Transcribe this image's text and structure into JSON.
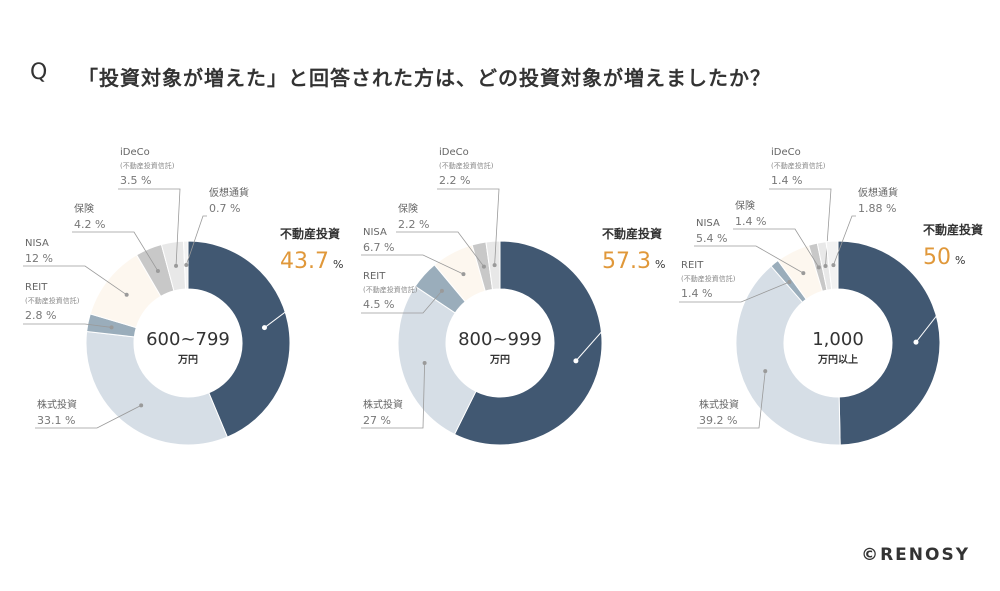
{
  "title": {
    "q_mark": "Q",
    "question": "「投資対象が増えた」と回答された方は、どの投資対象が増えましたか？"
  },
  "copyright": "©RENOSY",
  "colors": {
    "real_estate": "#415872",
    "stock": "#d6dee6",
    "reit": "#9aadbb",
    "nisa": "#fdf7ef",
    "insurance": "#c8c8c8",
    "ideco": "#e8e8e8",
    "crypto": "#f2f2f2",
    "accent": "#e0983a"
  },
  "chart_data": [
    {
      "type": "pie",
      "center_label": [
        "600~799",
        "万円"
      ],
      "segments": [
        {
          "label": "不動産投資",
          "sublabel": "",
          "value": 43.7,
          "unit": "%",
          "color_key": "real_estate"
        },
        {
          "label": "株式投資",
          "sublabel": "",
          "value": 33.1,
          "unit": "%",
          "color_key": "stock"
        },
        {
          "label": "REIT",
          "sublabel": "(不動産投資信託)",
          "value": 2.8,
          "unit": "%",
          "color_key": "reit"
        },
        {
          "label": "NISA",
          "sublabel": "",
          "value": 12,
          "unit": "%",
          "color_key": "nisa"
        },
        {
          "label": "保険",
          "sublabel": "",
          "value": 4.2,
          "unit": "%",
          "color_key": "insurance"
        },
        {
          "label": "iDeCo",
          "sublabel": "(不動産投資信託)",
          "value": 3.5,
          "unit": "%",
          "color_key": "ideco"
        },
        {
          "label": "仮想通貨",
          "sublabel": "",
          "value": 0.7,
          "unit": "%",
          "color_key": "crypto"
        }
      ]
    },
    {
      "type": "pie",
      "center_label": [
        "800~999",
        "万円"
      ],
      "segments": [
        {
          "label": "不動産投資",
          "sublabel": "",
          "value": 57.3,
          "unit": "%",
          "color_key": "real_estate"
        },
        {
          "label": "株式投資",
          "sublabel": "",
          "value": 27,
          "unit": "%",
          "color_key": "stock"
        },
        {
          "label": "REIT",
          "sublabel": "(不動産投資信託)",
          "value": 4.5,
          "unit": "%",
          "color_key": "reit"
        },
        {
          "label": "NISA",
          "sublabel": "",
          "value": 6.7,
          "unit": "%",
          "color_key": "nisa"
        },
        {
          "label": "保険",
          "sublabel": "",
          "value": 2.2,
          "unit": "%",
          "color_key": "insurance"
        },
        {
          "label": "iDeCo",
          "sublabel": "(不動産投資信託)",
          "value": 2.2,
          "unit": "%",
          "color_key": "ideco"
        }
      ]
    },
    {
      "type": "pie",
      "center_label": [
        "1,000",
        "万円以上"
      ],
      "segments": [
        {
          "label": "不動産投資",
          "sublabel": "",
          "value": 50,
          "unit": "%",
          "color_key": "real_estate"
        },
        {
          "label": "株式投資",
          "sublabel": "",
          "value": 39.2,
          "unit": "%",
          "color_key": "stock"
        },
        {
          "label": "REIT",
          "sublabel": "(不動産投資信託)",
          "value": 1.4,
          "unit": "%",
          "color_key": "reit"
        },
        {
          "label": "NISA",
          "sublabel": "",
          "value": 5.4,
          "unit": "%",
          "color_key": "nisa"
        },
        {
          "label": "保険",
          "sublabel": "",
          "value": 1.4,
          "unit": "%",
          "color_key": "insurance"
        },
        {
          "label": "iDeCo",
          "sublabel": "(不動産投資信託)",
          "value": 1.4,
          "unit": "%",
          "color_key": "ideco"
        },
        {
          "label": "仮想通貨",
          "sublabel": "",
          "value": 1.88,
          "unit": "%",
          "color_key": "crypto"
        }
      ]
    }
  ]
}
